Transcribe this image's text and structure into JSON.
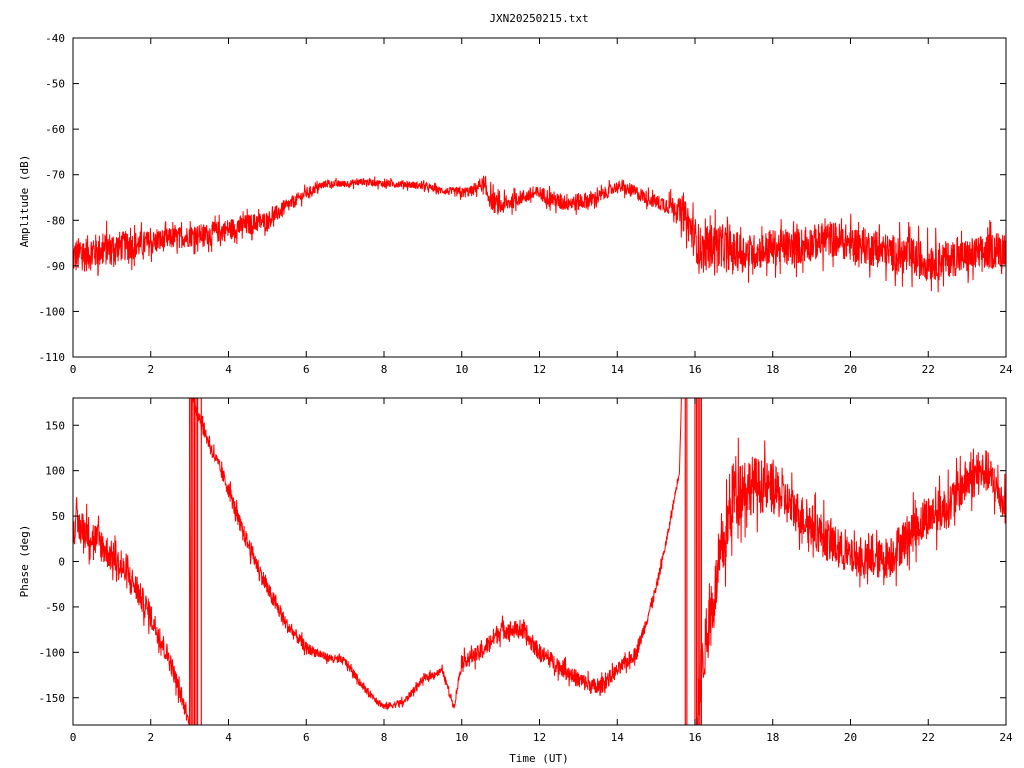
{
  "title": "JXN20250215.txt",
  "chart_data": [
    {
      "type": "line",
      "title": "JXN20250215.txt",
      "xlabel": "",
      "ylabel": "Amplitude (dB)",
      "xlim": [
        0,
        24
      ],
      "ylim": [
        -110,
        -40
      ],
      "xticks": [
        "0",
        "2",
        "4",
        "6",
        "8",
        "10",
        "12",
        "14",
        "16",
        "18",
        "20",
        "22",
        "24"
      ],
      "yticks": [
        "-40",
        "-50",
        "-60",
        "-70",
        "-80",
        "-90",
        "-100",
        "-110"
      ],
      "grid": false,
      "line_color": "#ff0000",
      "series": [
        {
          "x": [
            0,
            0.5,
            1,
            1.5,
            2,
            2.5,
            3,
            3.5,
            4,
            4.5,
            5,
            5.5,
            6,
            6.5,
            7,
            7.5,
            8,
            8.5,
            9,
            9.5,
            10,
            10.3,
            10.5,
            10.8,
            11,
            11.5,
            12,
            12.5,
            13,
            13.5,
            14,
            14.5,
            15,
            15.5,
            15.8,
            16,
            16.2,
            16.5,
            17,
            17.5,
            18,
            18.5,
            19,
            19.5,
            20,
            20.5,
            21,
            21.5,
            22,
            22.5,
            23,
            23.5,
            24
          ],
          "y": [
            -88,
            -87,
            -86,
            -85.5,
            -85,
            -84,
            -83.5,
            -83,
            -82,
            -81,
            -80,
            -77,
            -74,
            -72,
            -72,
            -71.5,
            -72,
            -72,
            -72.5,
            -73.5,
            -74,
            -73.5,
            -72,
            -76,
            -77,
            -75,
            -74,
            -76,
            -76,
            -75,
            -72.5,
            -74,
            -76,
            -77,
            -80,
            -84,
            -87,
            -85,
            -87,
            -87,
            -86,
            -86,
            -85,
            -84,
            -85,
            -86,
            -87,
            -88,
            -89,
            -88.5,
            -88,
            -87,
            -86
          ],
          "noise": [
            5,
            5,
            4.5,
            4,
            3.5,
            3,
            3,
            3,
            3,
            3,
            2.5,
            2,
            1.5,
            1,
            1,
            1,
            1,
            1,
            1,
            1,
            1.5,
            1.5,
            2,
            3,
            2.5,
            2,
            2,
            2.5,
            2.5,
            2,
            1.5,
            2,
            2,
            3,
            5,
            6,
            6,
            6,
            5.5,
            5,
            5,
            5,
            5,
            5,
            5,
            5,
            5,
            5.5,
            5.5,
            5,
            5,
            5,
            5
          ]
        }
      ]
    },
    {
      "type": "line",
      "title": "",
      "xlabel": "Time (UT)",
      "ylabel": "Phase (deg)",
      "xlim": [
        0,
        24
      ],
      "ylim": [
        -180,
        180
      ],
      "xticks": [
        "0",
        "2",
        "4",
        "6",
        "8",
        "10",
        "12",
        "14",
        "16",
        "18",
        "20",
        "22",
        "24"
      ],
      "yticks": [
        "150",
        "100",
        "50",
        "0",
        "-50",
        "-100",
        "-150"
      ],
      "ytick_values": [
        150,
        100,
        50,
        0,
        -50,
        -100,
        -150
      ],
      "grid": false,
      "line_color": "#ff0000",
      "series": [
        {
          "x": [
            0,
            0.3,
            0.7,
            1,
            1.5,
            2,
            2.5,
            2.9,
            3.0,
            3.05,
            3.2,
            3.5,
            3.8,
            4,
            4.3,
            4.7,
            5,
            5.5,
            6,
            6.5,
            7,
            7.5,
            8,
            8.5,
            9,
            9.5,
            9.8,
            10,
            10.5,
            11,
            11.5,
            12,
            12.5,
            13,
            13.5,
            14,
            14.5,
            15,
            15.3,
            15.6,
            15.65
          ],
          "y": [
            40,
            35,
            20,
            5,
            -20,
            -60,
            -110,
            -165,
            -180,
            180,
            165,
            130,
            100,
            80,
            40,
            0,
            -30,
            -70,
            -95,
            -105,
            -110,
            -140,
            -160,
            -155,
            -130,
            -120,
            -160,
            -110,
            -100,
            -75,
            -75,
            -100,
            -115,
            -130,
            -140,
            -120,
            -100,
            -30,
            30,
            100,
            180
          ],
          "noise": [
            25,
            25,
            25,
            22,
            20,
            18,
            15,
            10,
            5,
            5,
            12,
            10,
            10,
            12,
            12,
            12,
            12,
            10,
            8,
            6,
            6,
            5,
            5,
            5,
            5,
            5,
            5,
            10,
            12,
            14,
            12,
            12,
            12,
            12,
            12,
            10,
            10,
            8,
            6,
            6,
            4
          ]
        },
        {
          "x": [
            16.05,
            16.2,
            16.4,
            16.6,
            16.8,
            17,
            17.5,
            18,
            18.5,
            19,
            19.5,
            20,
            20.5,
            21,
            21.5,
            22,
            22.5,
            23,
            23.5,
            24
          ],
          "y": [
            -170,
            -110,
            -60,
            -10,
            30,
            80,
            85,
            80,
            60,
            40,
            20,
            5,
            0,
            5,
            30,
            50,
            60,
            90,
            100,
            60
          ],
          "noise": [
            30,
            40,
            40,
            40,
            45,
            50,
            40,
            35,
            30,
            30,
            30,
            25,
            25,
            30,
            30,
            30,
            30,
            30,
            30,
            25
          ]
        }
      ],
      "wraps": [
        {
          "x": 3.0,
          "count": 6
        },
        {
          "x": 3.3,
          "count": 1
        },
        {
          "x": 15.75,
          "count": 2
        },
        {
          "x": 16.0,
          "count": 5
        }
      ]
    }
  ]
}
